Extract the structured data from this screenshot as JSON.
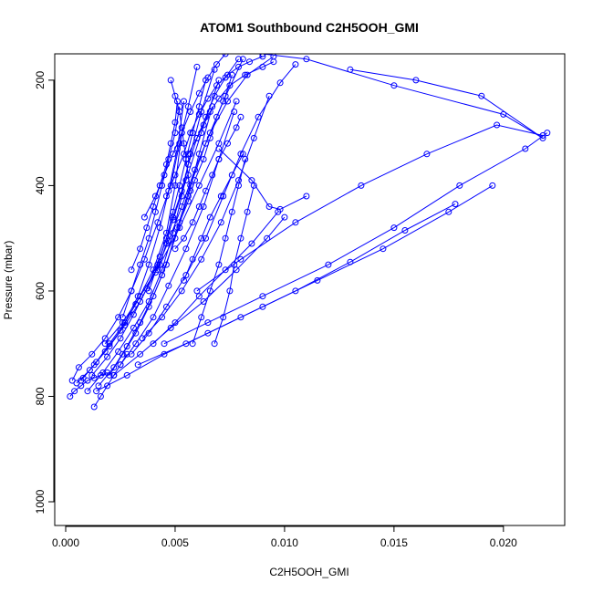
{
  "chart_data": {
    "type": "line",
    "title": "ATOM1 Southbound C2H5OOH_GMI",
    "xlabel": "C2H5OOH_GMI",
    "ylabel": "Pressure (mbar)",
    "xlim": [
      -0.0005,
      0.0228
    ],
    "ylim": [
      1045,
      150
    ],
    "y_inverted": true,
    "x_ticks": [
      0.0,
      0.005,
      0.01,
      0.015,
      0.02
    ],
    "x_tick_labels": [
      "0.000",
      "0.005",
      "0.010",
      "0.015",
      "0.020"
    ],
    "y_ticks": [
      200,
      400,
      600,
      800,
      1000
    ],
    "y_tick_labels": [
      "200",
      "400",
      "600",
      "800",
      "1000"
    ],
    "grid": false,
    "series_color": "#0000ff",
    "marker": "open-circle",
    "series": [
      {
        "x": [
          0.0003,
          0.0006,
          0.0012,
          0.0018,
          0.0024,
          0.003,
          0.0036,
          0.0042,
          0.0048,
          0.0052,
          0.0056,
          0.006
        ],
        "y": [
          770,
          745,
          720,
          690,
          650,
          600,
          540,
          470,
          400,
          320,
          250,
          175
        ]
      },
      {
        "x": [
          0.0008,
          0.0014,
          0.002,
          0.0027,
          0.0033,
          0.0038,
          0.0043,
          0.0047,
          0.0051,
          0.0054
        ],
        "y": [
          765,
          735,
          700,
          660,
          610,
          550,
          480,
          410,
          330,
          240
        ]
      },
      {
        "x": [
          0.0012,
          0.0019,
          0.0025,
          0.0031,
          0.0037,
          0.0043,
          0.0049,
          0.0055,
          0.0062,
          0.007
        ],
        "y": [
          760,
          725,
          690,
          645,
          595,
          535,
          465,
          390,
          300,
          200
        ]
      },
      {
        "x": [
          0.0005,
          0.0011,
          0.0018,
          0.0025,
          0.0032,
          0.004,
          0.0046,
          0.005,
          0.0053
        ],
        "y": [
          775,
          750,
          715,
          675,
          625,
          560,
          490,
          400,
          300
        ]
      },
      {
        "x": [
          0.0015,
          0.0022,
          0.0028,
          0.0034,
          0.004,
          0.0046,
          0.0051,
          0.0057,
          0.0064,
          0.0072,
          0.0081
        ],
        "y": [
          780,
          745,
          705,
          660,
          610,
          550,
          480,
          400,
          320,
          240,
          160
        ]
      },
      {
        "x": [
          0.002,
          0.0026,
          0.0032,
          0.0038,
          0.0044,
          0.005,
          0.0056,
          0.0061,
          0.0067
        ],
        "y": [
          760,
          720,
          680,
          630,
          570,
          500,
          420,
          340,
          250
        ]
      },
      {
        "x": [
          0.0007,
          0.0013,
          0.002,
          0.0027,
          0.0034,
          0.0041,
          0.0047,
          0.0053,
          0.0059,
          0.0066,
          0.0074,
          0.0083,
          0.0095
        ],
        "y": [
          770,
          740,
          705,
          665,
          620,
          565,
          505,
          440,
          370,
          300,
          240,
          190,
          155
        ]
      },
      {
        "x": [
          0.0025,
          0.0032,
          0.004,
          0.0047,
          0.0055,
          0.0063,
          0.007,
          0.0077
        ],
        "y": [
          740,
          700,
          650,
          590,
          520,
          440,
          350,
          260
        ]
      },
      {
        "x": [
          0.001,
          0.0017,
          0.0024,
          0.0031,
          0.0038,
          0.0044,
          0.0049,
          0.0053,
          0.0057,
          0.0062,
          0.0068
        ],
        "y": [
          790,
          755,
          715,
          670,
          620,
          560,
          490,
          420,
          340,
          260,
          180
        ]
      },
      {
        "x": [
          0.003,
          0.0038,
          0.0046,
          0.0055,
          0.0064,
          0.0072,
          0.008,
          0.0088,
          0.0098,
          0.0105
        ],
        "y": [
          720,
          680,
          630,
          570,
          500,
          420,
          340,
          270,
          205,
          170
        ]
      },
      {
        "x": [
          0.0018,
          0.0026,
          0.0034,
          0.0043,
          0.0052,
          0.0061,
          0.007,
          0.0078
        ],
        "y": [
          700,
          660,
          610,
          550,
          480,
          400,
          320,
          240
        ]
      },
      {
        "x": [
          0.0035,
          0.0044,
          0.0053,
          0.0062,
          0.0071,
          0.0079,
          0.0086,
          0.0093
        ],
        "y": [
          690,
          650,
          600,
          540,
          470,
          390,
          310,
          230
        ]
      },
      {
        "x": [
          0.004,
          0.005,
          0.0061,
          0.0073,
          0.0085,
          0.0097
        ],
        "y": [
          700,
          660,
          610,
          560,
          510,
          450
        ]
      },
      {
        "x": [
          0.0022,
          0.0034,
          0.0048,
          0.0063,
          0.0078,
          0.0092,
          0.01
        ],
        "y": [
          760,
          720,
          670,
          620,
          560,
          500,
          460
        ]
      },
      {
        "x": [
          0.0014,
          0.0028,
          0.0045,
          0.0065,
          0.009,
          0.0115,
          0.0145,
          0.0175,
          0.0195
        ],
        "y": [
          790,
          760,
          720,
          680,
          630,
          580,
          520,
          450,
          400
        ]
      },
      {
        "x": [
          0.0033,
          0.0055,
          0.008,
          0.0105,
          0.013,
          0.0155,
          0.0178
        ],
        "y": [
          740,
          700,
          650,
          600,
          545,
          485,
          435
        ]
      },
      {
        "x": [
          0.0045,
          0.0065,
          0.009,
          0.012,
          0.015,
          0.018,
          0.021,
          0.022
        ],
        "y": [
          700,
          660,
          610,
          550,
          480,
          400,
          330,
          300
        ]
      },
      {
        "x": [
          0.006,
          0.008,
          0.0105,
          0.0135,
          0.0165,
          0.0197,
          0.0218
        ],
        "y": [
          600,
          540,
          470,
          400,
          340,
          285,
          305
        ]
      },
      {
        "x": [
          0.013,
          0.016,
          0.019,
          0.0218,
          0.02,
          0.015,
          0.011,
          0.009
        ],
        "y": [
          180,
          200,
          230,
          310,
          265,
          210,
          160,
          150
        ]
      },
      {
        "x": [
          0.007,
          0.0085,
          0.0093,
          0.0098,
          0.011
        ],
        "y": [
          330,
          390,
          440,
          445,
          420
        ]
      },
      {
        "x": [
          0.005,
          0.0054,
          0.0058,
          0.0061,
          0.0064,
          0.0067,
          0.007,
          0.0074,
          0.0078,
          0.008
        ],
        "y": [
          520,
          500,
          470,
          440,
          410,
          380,
          350,
          320,
          290,
          270
        ]
      },
      {
        "x": [
          0.0038,
          0.0042,
          0.0046,
          0.0049,
          0.0052,
          0.0055,
          0.0058,
          0.0061,
          0.0064
        ],
        "y": [
          600,
          550,
          500,
          450,
          400,
          350,
          300,
          250,
          200
        ]
      },
      {
        "x": [
          0.0026,
          0.003,
          0.0034,
          0.0038,
          0.0041,
          0.0044,
          0.0047,
          0.005,
          0.0052
        ],
        "y": [
          650,
          600,
          550,
          500,
          450,
          400,
          350,
          300,
          250
        ]
      },
      {
        "x": [
          0.0042,
          0.0046,
          0.0049,
          0.0053,
          0.0056,
          0.006,
          0.0064,
          0.0068,
          0.0073,
          0.0079
        ],
        "y": [
          560,
          510,
          460,
          410,
          360,
          310,
          270,
          230,
          195,
          160
        ]
      },
      {
        "x": [
          0.0052,
          0.0056,
          0.0059,
          0.0063,
          0.0066,
          0.0069,
          0.0073,
          0.0076
        ],
        "y": [
          470,
          430,
          390,
          350,
          310,
          270,
          230,
          190
        ]
      },
      {
        "x": [
          0.0058,
          0.0062,
          0.0066,
          0.007,
          0.0073,
          0.0076,
          0.0079,
          0.0082
        ],
        "y": [
          700,
          650,
          600,
          550,
          500,
          450,
          400,
          350
        ]
      },
      {
        "x": [
          0.0068,
          0.0072,
          0.0075,
          0.0077,
          0.008,
          0.0083,
          0.0086
        ],
        "y": [
          700,
          650,
          600,
          550,
          500,
          450,
          400
        ]
      },
      {
        "x": [
          0.0002,
          0.0004,
          0.0007,
          0.001,
          0.0013,
          0.0016,
          0.0019
        ],
        "y": [
          800,
          790,
          780,
          770,
          765,
          760,
          755
        ]
      },
      {
        "x": [
          0.0013,
          0.0016,
          0.0019,
          0.0022,
          0.0025,
          0.0028
        ],
        "y": [
          820,
          800,
          780,
          760,
          740,
          720
        ]
      },
      {
        "x": [
          0.0036,
          0.0041,
          0.0045,
          0.0049,
          0.0053,
          0.0057,
          0.0061,
          0.0065,
          0.0069,
          0.0073
        ],
        "y": [
          460,
          420,
          380,
          340,
          300,
          260,
          225,
          195,
          170,
          150
        ]
      },
      {
        "x": [
          0.0046,
          0.005,
          0.0054,
          0.0057,
          0.0061,
          0.0065,
          0.0069,
          0.0074,
          0.0079,
          0.0084,
          0.009
        ],
        "y": [
          420,
          380,
          340,
          300,
          265,
          235,
          210,
          190,
          175,
          165,
          155
        ]
      },
      {
        "x": [
          0.0056,
          0.006,
          0.0063,
          0.0066,
          0.007,
          0.0075,
          0.0082,
          0.009,
          0.0095
        ],
        "y": [
          340,
          310,
          285,
          260,
          235,
          210,
          190,
          175,
          165
        ]
      },
      {
        "x": [
          0.003,
          0.0034,
          0.0037,
          0.004,
          0.0043,
          0.0046,
          0.0048,
          0.005,
          0.0051
        ],
        "y": [
          560,
          520,
          480,
          440,
          400,
          360,
          320,
          280,
          240
        ]
      },
      {
        "x": [
          0.0048,
          0.005,
          0.0052,
          0.0053,
          0.0054,
          0.0055,
          0.0056,
          0.0057
        ],
        "y": [
          200,
          230,
          260,
          290,
          320,
          350,
          380,
          410
        ]
      },
      {
        "x": [
          0.0054,
          0.0058,
          0.0062,
          0.0066,
          0.0071,
          0.0076,
          0.0081
        ],
        "y": [
          580,
          540,
          500,
          460,
          420,
          380,
          340
        ]
      }
    ]
  }
}
